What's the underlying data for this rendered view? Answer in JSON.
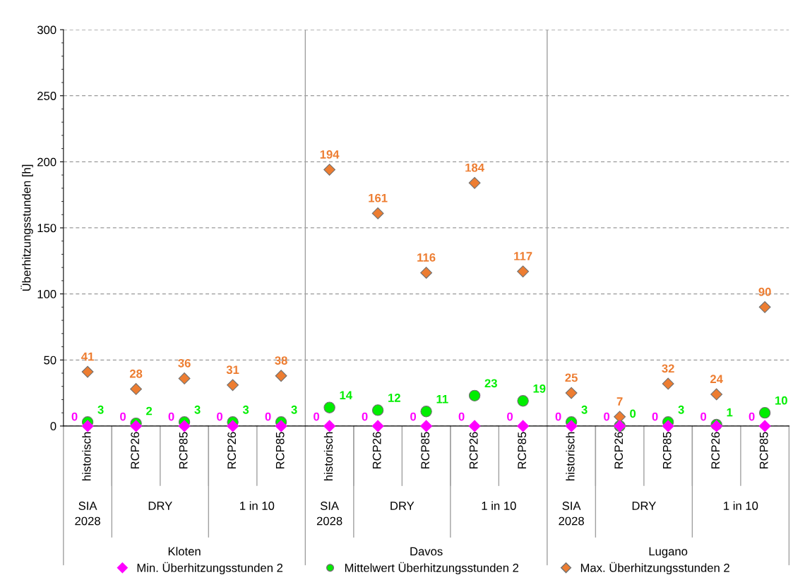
{
  "chart_data": {
    "type": "scatter",
    "ylabel": "Überhitzungsstunden [h]",
    "categories": [
      "historisch",
      "RCP26",
      "RCP85",
      "RCP26",
      "RCP85",
      "historisch",
      "RCP26",
      "RCP85",
      "RCP26",
      "RCP85",
      "historisch",
      "RCP26",
      "RCP85",
      "RCP26",
      "RCP85"
    ],
    "annotations": [
      "SIA\n2028",
      "DRY",
      "1 in 10",
      "Kloten",
      "SIA\n2028",
      "DRY",
      "1 in 10",
      "Davos",
      "SIA\n2028",
      "DRY",
      "1 in 10",
      "Lugano"
    ],
    "series": [
      {
        "name": "Min. Überhitzungsstunden 2",
        "color": "#ff00ff",
        "marker": "diamond",
        "values": [
          0,
          0,
          0,
          0,
          0,
          0,
          0,
          0,
          0,
          0,
          0,
          0,
          0,
          0,
          0
        ]
      },
      {
        "name": "Mittelwert Überhitzungsstunden 2",
        "color": "#00ee00",
        "marker": "circle",
        "values": [
          3,
          2,
          3,
          3,
          3,
          14,
          12,
          11,
          23,
          19,
          3,
          0,
          3,
          1,
          10
        ]
      },
      {
        "name": "Max. Überhitzungsstunden 2",
        "color": "#ed7d31",
        "marker": "diamond",
        "values": [
          41,
          28,
          36,
          31,
          38,
          194,
          161,
          116,
          184,
          117,
          25,
          7,
          32,
          24,
          90
        ]
      }
    ],
    "ylim": [
      0,
      300
    ],
    "yticks": [
      0,
      50,
      100,
      150,
      200,
      250,
      300
    ],
    "grid": "y",
    "legend": "bottom",
    "data_labels": true
  }
}
